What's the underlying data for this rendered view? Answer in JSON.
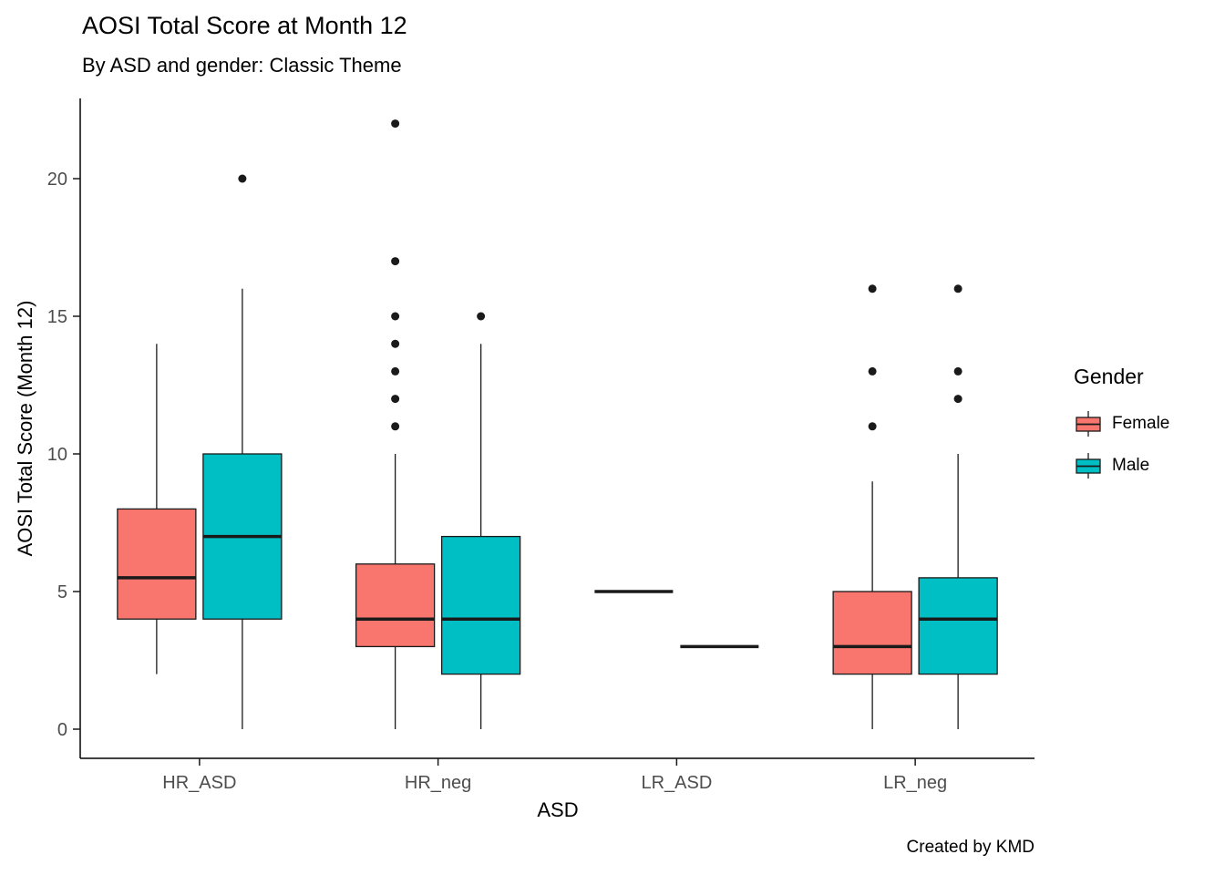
{
  "chart_data": {
    "type": "boxplot",
    "title": "AOSI Total Score at Month 12",
    "subtitle": "By ASD and gender: Classic Theme",
    "xlabel": "ASD",
    "ylabel": "AOSI Total Score (Month 12)",
    "caption": "Created by KMD",
    "yticks": [
      0,
      5,
      10,
      15,
      20
    ],
    "ylim": [
      -1,
      23
    ],
    "grid": false,
    "legend": {
      "title": "Gender",
      "position": "right",
      "entries": [
        {
          "label": "Female",
          "color": "#F8766D"
        },
        {
          "label": "Male",
          "color": "#00BFC4"
        }
      ]
    },
    "categories": [
      "HR_ASD",
      "HR_neg",
      "LR_ASD",
      "LR_neg"
    ],
    "series": [
      {
        "name": "Female",
        "color": "#F8766D",
        "boxes": [
          {
            "whisker_low": 2,
            "q1": 4,
            "median": 5.5,
            "q3": 8,
            "whisker_high": 14,
            "outliers": []
          },
          {
            "whisker_low": 0,
            "q1": 3,
            "median": 4,
            "q3": 6,
            "whisker_high": 10,
            "outliers": [
              11,
              12,
              13,
              14,
              15,
              17,
              22
            ]
          },
          {
            "single_value": 5
          },
          {
            "whisker_low": 0,
            "q1": 2,
            "median": 3,
            "q3": 5,
            "whisker_high": 9,
            "outliers": [
              11,
              13,
              16
            ]
          }
        ]
      },
      {
        "name": "Male",
        "color": "#00BFC4",
        "boxes": [
          {
            "whisker_low": 0,
            "q1": 4,
            "median": 7,
            "q3": 10,
            "whisker_high": 16,
            "outliers": [
              20
            ]
          },
          {
            "whisker_low": 0,
            "q1": 2,
            "median": 4,
            "q3": 7,
            "whisker_high": 14,
            "outliers": [
              15
            ]
          },
          {
            "single_value": 3
          },
          {
            "whisker_low": 0,
            "q1": 2,
            "median": 4,
            "q3": 5.5,
            "whisker_high": 10,
            "outliers": [
              12,
              13,
              16
            ]
          }
        ]
      }
    ],
    "style": {
      "outline_color": "#1a1a1a",
      "tick_label_color": "#4d4d4d",
      "axis_color": "#000000"
    }
  }
}
